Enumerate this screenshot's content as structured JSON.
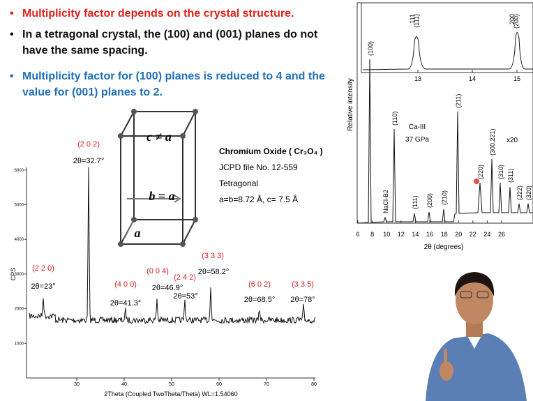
{
  "bullets": [
    {
      "text": "Multiplicity factor depends on the crystal structure.",
      "color": "#e0201b"
    },
    {
      "text": "In a tetragonal crystal, the (100) and (001) planes do not have the same spacing.",
      "color": "#111111"
    },
    {
      "text": "Multiplicity factor for (100) planes is reduced to 4 and the value for (001) planes to 2.",
      "color": "#1f6fb5"
    }
  ],
  "diagram": {
    "labels": [
      "c ≠ a",
      "b = a",
      "a"
    ]
  },
  "material": {
    "lines": [
      "Chromium Oxide ( Cr₃O₄ )",
      "JCPD file No.  12-559",
      "Tetragonal",
      "a=b=8.72 Å,  c= 7.5 Å"
    ]
  },
  "xrd_left": {
    "y_label": "CPS",
    "x_label": "2Theta (Coupled TwoTheta/Theta) WL=1.54060",
    "yticks": [
      1000,
      2000,
      3000,
      4000,
      5000,
      6000
    ],
    "xticks": [
      30,
      40,
      50,
      60,
      70,
      80
    ],
    "peaks": [
      {
        "hkl": "(2 2 0)",
        "angle": "2θ=23°"
      },
      {
        "hkl": "(2 0 2)",
        "angle": "2θ=32.7°"
      },
      {
        "hkl": "(4 0 0)",
        "angle": "2θ=41.3°"
      },
      {
        "hkl": "(0 0 4)",
        "angle": "2θ=46.9°"
      },
      {
        "hkl": "(2 4 2)",
        "angle": "2θ=53°"
      },
      {
        "hkl": "(3 3 3)",
        "angle": "2θ=58.2°"
      },
      {
        "hkl": "(6 0 2)",
        "angle": "2θ=68.5°"
      },
      {
        "hkl": "(3 3 5)",
        "angle": "2θ=78°"
      }
    ]
  },
  "xrd_right": {
    "y_label": "Relative intensity",
    "x_label": "2θ (degrees)",
    "xticks": [
      6,
      8,
      10,
      12,
      14,
      16,
      18,
      20,
      22,
      24,
      26
    ],
    "inset_xticks": [
      13,
      14,
      15
    ],
    "inset_labels": [
      "111",
      "(111)",
      "200",
      "(200)"
    ],
    "peak_labels": [
      "(100)",
      "NaCl-B2",
      "(110)",
      "(111)",
      "(200)",
      "(210)",
      "(211)",
      "(220)",
      "(300,221)",
      "(310)",
      "(311)",
      "(222)",
      "(320)"
    ],
    "notes": [
      "Ca-III",
      "37 GPa",
      "x20"
    ]
  }
}
